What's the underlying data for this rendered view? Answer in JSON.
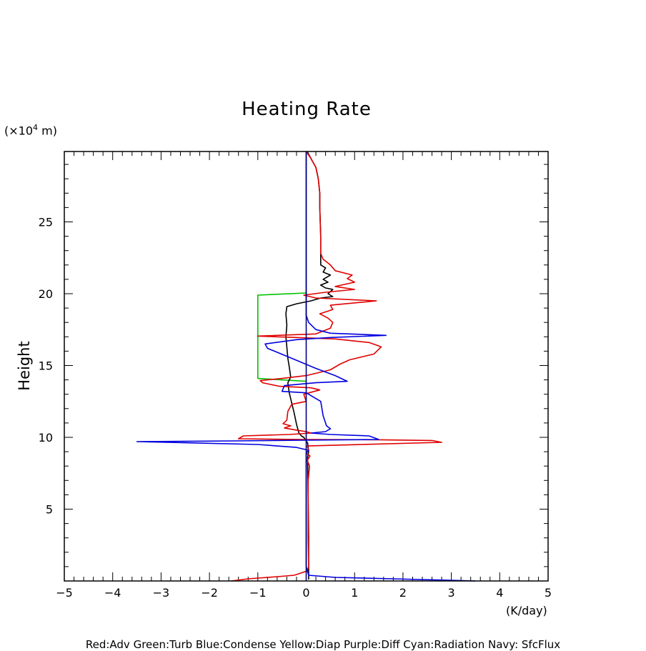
{
  "chart_data": {
    "type": "line",
    "title": "Heating Rate",
    "ylabel": "Height",
    "y_unit_prefix": "(×10",
    "y_unit_exp": "4",
    "y_unit_suffix": " m)",
    "x_unit": "(K/day)",
    "caption": "Red:Adv  Green:Turb  Blue:Condense  Yellow:Diap  Purple:Diff  Cyan:Radiation  Navy: SfcFlux",
    "xlim": [
      -5,
      5
    ],
    "ylim": [
      0,
      29.9
    ],
    "xticks": [
      -5,
      -4,
      -3,
      -2,
      -1,
      0,
      1,
      2,
      3,
      4,
      5
    ],
    "yticks": [
      5,
      10,
      15,
      20,
      25
    ],
    "xtick_labels": [
      "−5",
      "−4",
      "−3",
      "−2",
      "−1",
      "0",
      "1",
      "2",
      "3",
      "4",
      "5"
    ],
    "ytick_labels": [
      "5",
      "10",
      "15",
      "20",
      "25"
    ],
    "grid": false,
    "series": [
      {
        "color": "#00c000",
        "points": [
          [
            0,
            13.9
          ],
          [
            -1.0,
            14.1
          ],
          [
            -1.0,
            17.1
          ],
          [
            -1.0,
            19.9
          ],
          [
            0,
            20.05
          ]
        ]
      },
      {
        "color": "#000000",
        "points": [
          [
            0.05,
            0.1
          ],
          [
            0.05,
            3
          ],
          [
            0.04,
            6
          ],
          [
            0.03,
            8.6
          ],
          [
            0.05,
            9.0
          ],
          [
            0.03,
            9.6
          ],
          [
            -0.05,
            10.0
          ],
          [
            -0.1,
            10.1
          ],
          [
            -0.15,
            10.3
          ],
          [
            -0.2,
            10.9
          ],
          [
            -0.25,
            11.7
          ],
          [
            -0.3,
            12.4
          ],
          [
            -0.35,
            13.1
          ],
          [
            -0.38,
            13.8
          ],
          [
            -0.32,
            14.2
          ],
          [
            -0.35,
            14.9
          ],
          [
            -0.38,
            15.5
          ],
          [
            -0.4,
            16.3
          ],
          [
            -0.42,
            17.0
          ],
          [
            -0.4,
            17.8
          ],
          [
            -0.42,
            18.6
          ],
          [
            -0.4,
            19.1
          ],
          [
            -0.2,
            19.3
          ],
          [
            0.1,
            19.5
          ],
          [
            0.3,
            19.7
          ],
          [
            0.55,
            19.8
          ],
          [
            0.45,
            20.0
          ],
          [
            0.55,
            20.3
          ],
          [
            0.4,
            20.4
          ],
          [
            0.3,
            20.6
          ],
          [
            0.45,
            20.8
          ],
          [
            0.35,
            21.0
          ],
          [
            0.5,
            21.3
          ],
          [
            0.35,
            21.5
          ],
          [
            0.4,
            21.8
          ],
          [
            0.3,
            22.0
          ],
          [
            0.3,
            23.0
          ],
          [
            0.3,
            24.0
          ],
          [
            0.28,
            26.0
          ],
          [
            0.28,
            27.0
          ],
          [
            0.25,
            28.0
          ],
          [
            0.2,
            28.8
          ],
          [
            0.1,
            29.4
          ],
          [
            0.02,
            29.9
          ]
        ]
      },
      {
        "color": "#e00000",
        "points": [
          [
            -1.55,
            0.0
          ],
          [
            -1.2,
            0.15
          ],
          [
            -0.6,
            0.3
          ],
          [
            -0.25,
            0.4
          ],
          [
            -0.15,
            0.5
          ],
          [
            0.02,
            0.7
          ],
          [
            0.05,
            1.0
          ],
          [
            0.04,
            3.0
          ],
          [
            0.04,
            5.0
          ],
          [
            0.04,
            7.0
          ],
          [
            0.07,
            8.0
          ],
          [
            0.02,
            8.4
          ],
          [
            0.08,
            8.7
          ],
          [
            0.0,
            8.9
          ],
          [
            0.05,
            9.1
          ],
          [
            0.02,
            9.4
          ],
          [
            2.8,
            9.65
          ],
          [
            2.6,
            9.78
          ],
          [
            1.5,
            9.83
          ],
          [
            -0.1,
            9.85
          ],
          [
            -1.4,
            9.9
          ],
          [
            -1.3,
            10.1
          ],
          [
            -0.35,
            10.2
          ],
          [
            0.1,
            10.3
          ],
          [
            0.0,
            10.4
          ],
          [
            -0.2,
            10.5
          ],
          [
            -0.45,
            10.65
          ],
          [
            -0.32,
            10.8
          ],
          [
            -0.48,
            10.95
          ],
          [
            -0.4,
            11.2
          ],
          [
            -0.38,
            11.8
          ],
          [
            -0.3,
            12.3
          ],
          [
            0.0,
            12.5
          ],
          [
            -0.05,
            13.0
          ],
          [
            0.28,
            13.3
          ],
          [
            0.1,
            13.45
          ],
          [
            -0.55,
            13.55
          ],
          [
            -0.9,
            13.8
          ],
          [
            -0.95,
            13.95
          ],
          [
            -0.5,
            14.1
          ],
          [
            0.0,
            14.3
          ],
          [
            0.5,
            14.7
          ],
          [
            0.7,
            15.1
          ],
          [
            0.9,
            15.4
          ],
          [
            1.4,
            15.8
          ],
          [
            1.55,
            16.3
          ],
          [
            1.3,
            16.6
          ],
          [
            0.6,
            16.85
          ],
          [
            -1.0,
            17.05
          ],
          [
            0.2,
            17.2
          ],
          [
            0.5,
            17.6
          ],
          [
            0.55,
            18.0
          ],
          [
            0.45,
            18.3
          ],
          [
            0.28,
            18.6
          ],
          [
            0.55,
            18.9
          ],
          [
            0.5,
            19.2
          ],
          [
            1.45,
            19.5
          ],
          [
            0.2,
            19.7
          ],
          [
            -0.05,
            19.9
          ],
          [
            0.4,
            20.1
          ],
          [
            1.0,
            20.3
          ],
          [
            0.6,
            20.5
          ],
          [
            1.0,
            20.8
          ],
          [
            0.85,
            21.05
          ],
          [
            0.95,
            21.3
          ],
          [
            0.6,
            21.6
          ],
          [
            0.5,
            22.0
          ],
          [
            0.35,
            22.4
          ],
          [
            0.3,
            22.8
          ],
          [
            0.3,
            24.0
          ],
          [
            0.28,
            26.0
          ],
          [
            0.28,
            27.0
          ],
          [
            0.25,
            28.0
          ],
          [
            0.2,
            28.8
          ],
          [
            0.1,
            29.4
          ],
          [
            0.0,
            29.9
          ]
        ]
      },
      {
        "color": "#0000e0",
        "points": [
          [
            3.5,
            0.0
          ],
          [
            1.8,
            0.15
          ],
          [
            0.6,
            0.25
          ],
          [
            0.05,
            0.4
          ],
          [
            0.0,
            1.0
          ],
          [
            0.0,
            8.9
          ],
          [
            0.05,
            9.1
          ],
          [
            -0.2,
            9.3
          ],
          [
            -1.0,
            9.5
          ],
          [
            -3.5,
            9.7
          ],
          [
            -1.5,
            9.75
          ],
          [
            0.0,
            9.8
          ],
          [
            1.5,
            9.85
          ],
          [
            1.3,
            10.1
          ],
          [
            0.5,
            10.2
          ],
          [
            0.1,
            10.3
          ],
          [
            0.4,
            10.4
          ],
          [
            0.5,
            10.6
          ],
          [
            0.42,
            10.8
          ],
          [
            0.35,
            11.5
          ],
          [
            0.3,
            12.5
          ],
          [
            0.0,
            13.1
          ],
          [
            -0.5,
            13.2
          ],
          [
            -0.45,
            13.6
          ],
          [
            0.2,
            13.8
          ],
          [
            0.85,
            13.9
          ],
          [
            0.6,
            14.3
          ],
          [
            0.2,
            14.8
          ],
          [
            -0.3,
            15.5
          ],
          [
            -0.8,
            16.2
          ],
          [
            -0.85,
            16.5
          ],
          [
            -0.2,
            16.8
          ],
          [
            0.5,
            16.95
          ],
          [
            1.65,
            17.1
          ],
          [
            0.5,
            17.25
          ],
          [
            0.2,
            17.5
          ],
          [
            0.05,
            18.0
          ],
          [
            0.0,
            18.5
          ],
          [
            0.0,
            19.0
          ],
          [
            0.0,
            29.9
          ]
        ]
      },
      {
        "color": "#000080",
        "points": [
          [
            0,
            0.0
          ],
          [
            0,
            29.9
          ]
        ]
      }
    ]
  }
}
